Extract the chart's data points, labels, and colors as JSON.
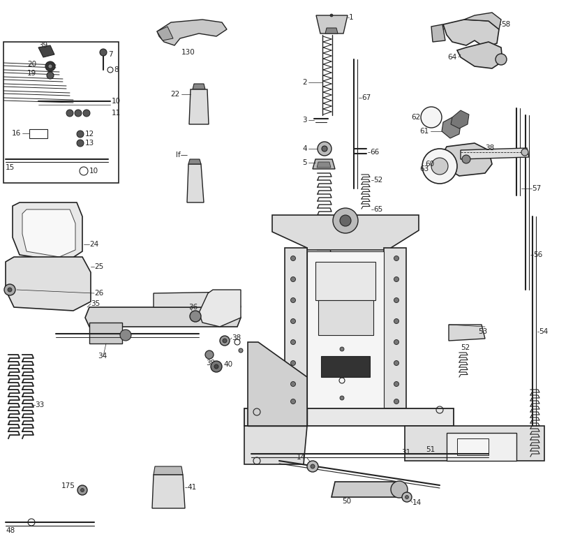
{
  "bg_color": "#ffffff",
  "line_color": "#222222",
  "label_color": "#111111",
  "figsize": [
    8.12,
    7.72
  ],
  "dpi": 100
}
